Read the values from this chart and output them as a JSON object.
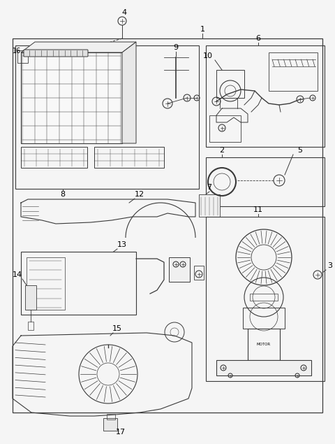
{
  "background_color": "#f5f5f5",
  "line_color": "#3a3a3a",
  "fig_width": 4.8,
  "fig_height": 6.35,
  "dpi": 100
}
